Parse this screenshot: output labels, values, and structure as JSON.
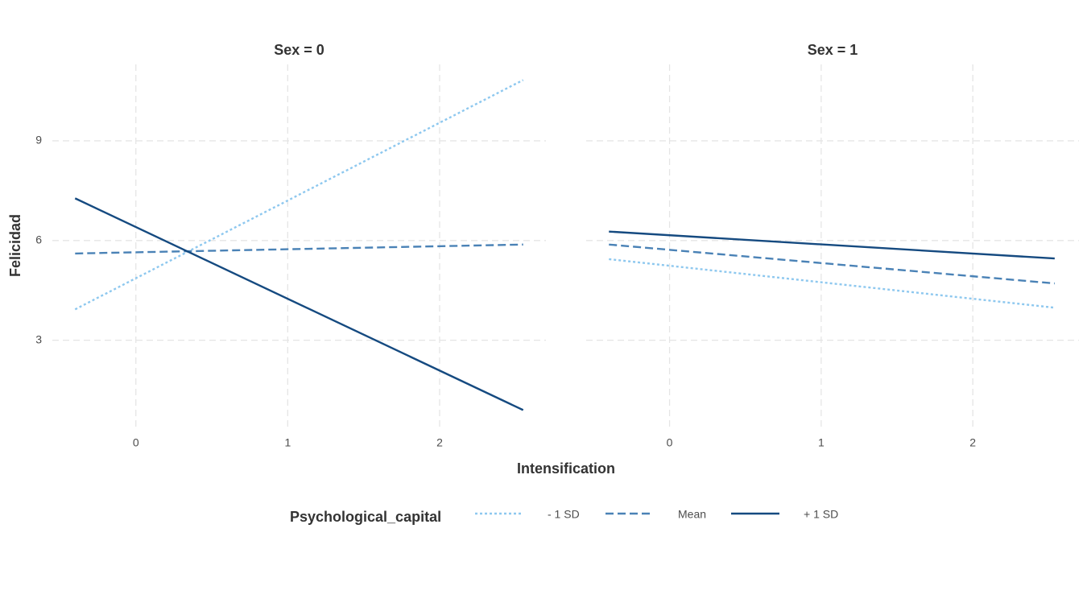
{
  "chart_data": [
    {
      "type": "line",
      "title": "Sex = 0",
      "x": [
        -0.4,
        2.55
      ],
      "series": [
        {
          "name": "- 1 SD",
          "color": "#8ec8ef",
          "linestyle": "dotted",
          "values": [
            3.93,
            10.83
          ]
        },
        {
          "name": "Mean",
          "color": "#4a82b6",
          "linestyle": "dashed",
          "values": [
            5.61,
            5.88
          ]
        },
        {
          "name": "+ 1 SD",
          "color": "#154a80",
          "linestyle": "solid",
          "values": [
            7.27,
            0.9
          ]
        }
      ],
      "xlim": [
        -0.55,
        2.7
      ],
      "ylim": [
        0.4,
        11.3
      ],
      "xticks": [
        0,
        1,
        2
      ],
      "yticks": [
        3,
        6,
        9
      ],
      "grid": true
    },
    {
      "type": "line",
      "title": "Sex = 1",
      "x": [
        -0.4,
        2.54
      ],
      "series": [
        {
          "name": "- 1 SD",
          "color": "#8ec8ef",
          "linestyle": "dotted",
          "values": [
            5.44,
            3.98
          ]
        },
        {
          "name": "Mean",
          "color": "#4a82b6",
          "linestyle": "dashed",
          "values": [
            5.88,
            4.71
          ]
        },
        {
          "name": "+ 1 SD",
          "color": "#154a80",
          "linestyle": "solid",
          "values": [
            6.27,
            5.46
          ]
        }
      ],
      "xlim": [
        -0.55,
        2.7
      ],
      "ylim": [
        0.4,
        11.3
      ],
      "xticks": [
        0,
        1,
        2
      ],
      "yticks": [
        3,
        6,
        9
      ],
      "grid": true
    }
  ],
  "x_label": "Intensification",
  "y_label": "Felicidad",
  "legend_title": "Psychological_capital"
}
